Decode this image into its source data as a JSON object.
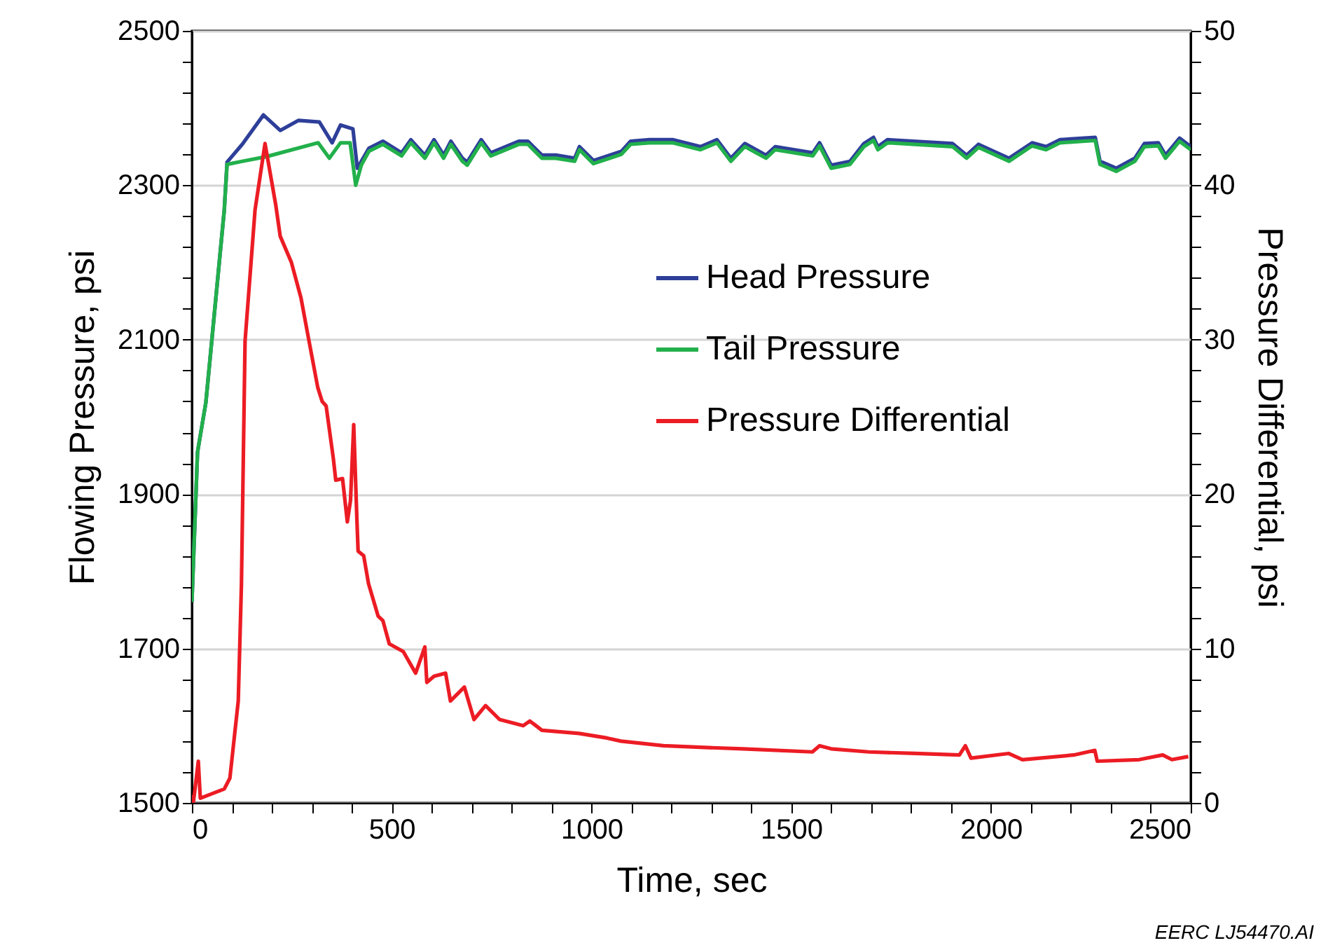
{
  "chart_data": {
    "type": "line",
    "xlabel": "Time, sec",
    "ylabel": "Flowing Pressure, psi",
    "y2label": "Pressure Differential, psi",
    "xlim": [
      0,
      2500
    ],
    "xticks": [
      0,
      {
        "value": 100,
        "label": null
      },
      {
        "value": 200,
        "label": null
      },
      {
        "value": 300,
        "label": null
      },
      {
        "value": 400,
        "label": null
      },
      500,
      {
        "value": 600,
        "label": null
      },
      {
        "value": 700,
        "label": null
      },
      {
        "value": 800,
        "label": null
      },
      {
        "value": 900,
        "label": null
      },
      1000,
      {
        "value": 1100,
        "label": null
      },
      {
        "value": 1200,
        "label": null
      },
      {
        "value": 1300,
        "label": null
      },
      {
        "value": 1400,
        "label": null
      },
      1500,
      {
        "value": 1600,
        "label": null
      },
      {
        "value": 1700,
        "label": null
      },
      {
        "value": 1800,
        "label": null
      },
      {
        "value": 1900,
        "label": null
      },
      2000,
      {
        "value": 2100,
        "label": null
      },
      {
        "value": 2200,
        "label": null
      },
      {
        "value": 2300,
        "label": null
      },
      {
        "value": 2400,
        "label": null
      },
      2500
    ],
    "ylim": [
      1500,
      2500
    ],
    "yticks": [
      1500,
      {
        "value": 1540,
        "label": null
      },
      {
        "value": 1580,
        "label": null
      },
      {
        "value": 1620,
        "label": null
      },
      {
        "value": 1660,
        "label": null
      },
      1700,
      {
        "value": 1740,
        "label": null
      },
      {
        "value": 1780,
        "label": null
      },
      {
        "value": 1820,
        "label": null
      },
      {
        "value": 1860,
        "label": null
      },
      1900,
      {
        "value": 1940,
        "label": null
      },
      {
        "value": 1980,
        "label": null
      },
      {
        "value": 2020,
        "label": null
      },
      {
        "value": 2060,
        "label": null
      },
      2100,
      {
        "value": 2140,
        "label": null
      },
      {
        "value": 2180,
        "label": null
      },
      {
        "value": 2220,
        "label": null
      },
      {
        "value": 2260,
        "label": null
      },
      2300,
      {
        "value": 2340,
        "label": null
      },
      {
        "value": 2380,
        "label": null
      },
      {
        "value": 2420,
        "label": null
      },
      {
        "value": 2460,
        "label": null
      },
      2500
    ],
    "y2lim": [
      0,
      50
    ],
    "y2ticks": [
      0,
      {
        "value": 2,
        "label": null
      },
      {
        "value": 4,
        "label": null
      },
      {
        "value": 6,
        "label": null
      },
      {
        "value": 8,
        "label": null
      },
      10,
      {
        "value": 12,
        "label": null
      },
      {
        "value": 14,
        "label": null
      },
      {
        "value": 16,
        "label": null
      },
      {
        "value": 18,
        "label": null
      },
      20,
      {
        "value": 22,
        "label": null
      },
      {
        "value": 24,
        "label": null
      },
      {
        "value": 26,
        "label": null
      },
      {
        "value": 28,
        "label": null
      },
      30,
      {
        "value": 32,
        "label": null
      },
      {
        "value": 34,
        "label": null
      },
      {
        "value": 36,
        "label": null
      },
      {
        "value": 38,
        "label": null
      },
      40,
      {
        "value": 42,
        "label": null
      },
      {
        "value": 44,
        "label": null
      },
      {
        "value": 46,
        "label": null
      },
      {
        "value": 48,
        "label": null
      },
      50
    ],
    "grid": "y",
    "legend": "right",
    "marker": "none",
    "line_style": "solid",
    "annotations": [
      "EERC LJ54470.AI"
    ],
    "series": [
      {
        "name": "Head Pressure",
        "color": "#2e3f99",
        "x": [
          0,
          14,
          35,
          81,
          88,
          126,
          179,
          221,
          267,
          319,
          351,
          372,
          403,
          414,
          443,
          478,
          525,
          548,
          583,
          606,
          630,
          648,
          677,
          689,
          724,
          748,
          818,
          841,
          876,
          911,
          958,
          970,
          1005,
          1075,
          1098,
          1145,
          1203,
          1273,
          1314,
          1349,
          1384,
          1437,
          1460,
          1554,
          1571,
          1600,
          1647,
          1682,
          1706,
          1717,
          1741,
          1904,
          1939,
          1969,
          2045,
          2103,
          2138,
          2173,
          2261,
          2273,
          2314,
          2360,
          2384,
          2419,
          2437,
          2472,
          2500
        ],
        "values": [
          1760,
          1954,
          2019,
          2268,
          2330,
          2353,
          2391,
          2371,
          2384,
          2382,
          2355,
          2378,
          2373,
          2322,
          2348,
          2357,
          2342,
          2359,
          2339,
          2359,
          2339,
          2357,
          2335,
          2330,
          2359,
          2342,
          2357,
          2357,
          2339,
          2339,
          2335,
          2350,
          2332,
          2344,
          2357,
          2359,
          2359,
          2350,
          2359,
          2335,
          2354,
          2339,
          2350,
          2342,
          2355,
          2326,
          2331,
          2354,
          2362,
          2350,
          2359,
          2354,
          2339,
          2353,
          2335,
          2355,
          2350,
          2359,
          2362,
          2331,
          2322,
          2335,
          2354,
          2355,
          2339,
          2361,
          2350
        ]
      },
      {
        "name": "Tail Pressure",
        "color": "#22b04b",
        "x": [
          0,
          14,
          35,
          81,
          88,
          126,
          186,
          316,
          344,
          372,
          396,
          410,
          424,
          443,
          478,
          525,
          548,
          583,
          606,
          630,
          648,
          677,
          689,
          724,
          748,
          818,
          841,
          876,
          911,
          958,
          970,
          1005,
          1075,
          1098,
          1145,
          1203,
          1273,
          1314,
          1349,
          1384,
          1437,
          1460,
          1554,
          1571,
          1600,
          1647,
          1682,
          1706,
          1717,
          1741,
          1904,
          1939,
          1969,
          2045,
          2103,
          2138,
          2173,
          2261,
          2273,
          2314,
          2360,
          2384,
          2419,
          2437,
          2472,
          2500
        ],
        "values": [
          1760,
          1954,
          2019,
          2268,
          2327,
          2331,
          2337,
          2355,
          2335,
          2355,
          2355,
          2300,
          2326,
          2344,
          2353,
          2338,
          2355,
          2335,
          2355,
          2335,
          2353,
          2331,
          2326,
          2355,
          2338,
          2353,
          2353,
          2335,
          2335,
          2331,
          2346,
          2328,
          2340,
          2353,
          2355,
          2355,
          2346,
          2355,
          2331,
          2350,
          2335,
          2346,
          2338,
          2351,
          2322,
          2327,
          2350,
          2358,
          2346,
          2355,
          2350,
          2335,
          2349,
          2331,
          2351,
          2346,
          2355,
          2358,
          2327,
          2318,
          2331,
          2350,
          2351,
          2335,
          2357,
          2346
        ]
      },
      {
        "name": "Pressure Differential",
        "color": "#ec1c24",
        "axis": "y2",
        "x": [
          0,
          4,
          16,
          21,
          81,
          95,
          116,
          124,
          133,
          158,
          183,
          210,
          221,
          249,
          273,
          291,
          315,
          326,
          336,
          354,
          360,
          377,
          389,
          397,
          405,
          413,
          416,
          430,
          442,
          466,
          478,
          494,
          529,
          560,
          583,
          588,
          606,
          635,
          647,
          682,
          706,
          735,
          770,
          829,
          846,
          876,
          969,
          1039,
          1074,
          1180,
          1273,
          1379,
          1553,
          1571,
          1600,
          1694,
          1810,
          1921,
          1936,
          1950,
          2044,
          2079,
          2207,
          2260,
          2266,
          2371,
          2430,
          2453,
          2494
        ],
        "values": [
          0.5,
          0.1,
          2.7,
          0.3,
          0.9,
          1.6,
          6.6,
          14.2,
          29.9,
          38.4,
          42.7,
          38.7,
          36.7,
          35.0,
          32.7,
          30.2,
          26.9,
          26.0,
          25.7,
          22.3,
          20.9,
          21.0,
          18.2,
          19.6,
          24.5,
          18.3,
          16.3,
          16.0,
          14.2,
          12.1,
          11.8,
          10.3,
          9.8,
          8.4,
          10.1,
          7.8,
          8.2,
          8.4,
          6.6,
          7.5,
          5.4,
          6.3,
          5.4,
          5.0,
          5.3,
          4.7,
          4.5,
          4.2,
          4.0,
          3.7,
          3.6,
          3.5,
          3.3,
          3.7,
          3.5,
          3.3,
          3.2,
          3.1,
          3.7,
          2.9,
          3.2,
          2.8,
          3.1,
          3.4,
          2.7,
          2.8,
          3.1,
          2.8,
          3.0
        ]
      }
    ]
  }
}
